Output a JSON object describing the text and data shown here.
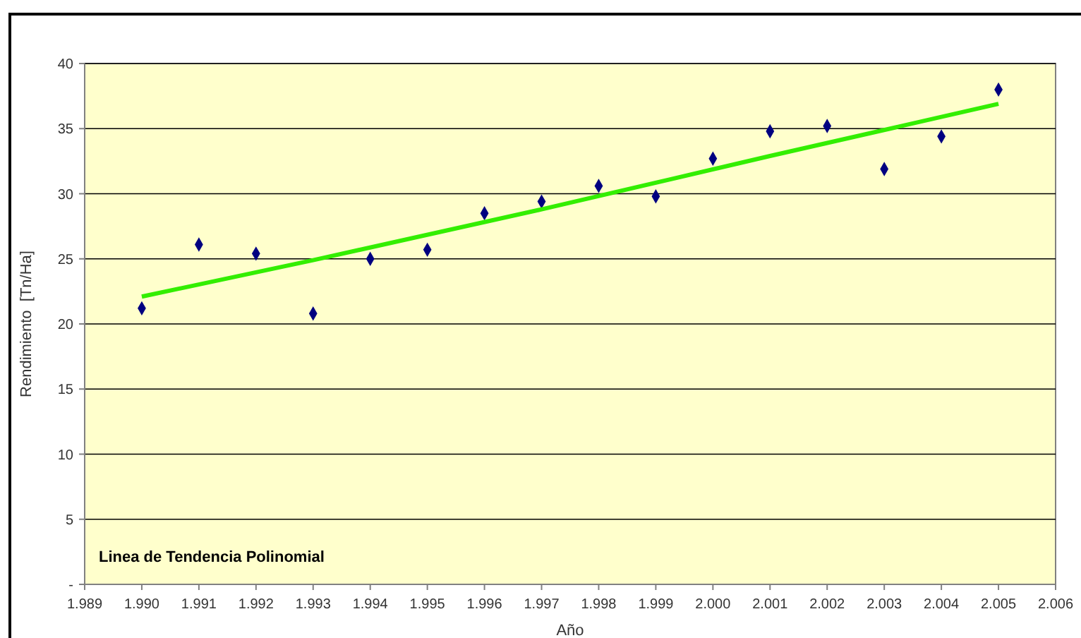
{
  "chart_data": {
    "type": "scatter",
    "xlabel": "Año",
    "ylabel": "Rendimiento  [Tn/Ha]",
    "x": [
      1990,
      1991,
      1992,
      1993,
      1994,
      1995,
      1996,
      1997,
      1998,
      1999,
      2000,
      2001,
      2002,
      2003,
      2004,
      2005
    ],
    "series": [
      {
        "color": "#000080",
        "marker": "diamond",
        "values": [
          21.2,
          26.1,
          25.4,
          20.8,
          25.0,
          25.7,
          28.5,
          29.4,
          30.6,
          29.8,
          32.7,
          34.8,
          35.2,
          31.9,
          34.4,
          38.0
        ]
      },
      {
        "type": "line",
        "color": "#33ee00",
        "x": [
          1990,
          1993,
          1997,
          2001,
          2005
        ],
        "values": [
          22.1,
          24.9,
          28.8,
          32.9,
          36.9
        ]
      }
    ],
    "xlim": [
      1989,
      2006
    ],
    "xticks": [
      {
        "value": 1989,
        "label": "1.989"
      },
      {
        "value": 1990,
        "label": "1.990"
      },
      {
        "value": 1991,
        "label": "1.991"
      },
      {
        "value": 1992,
        "label": "1.992"
      },
      {
        "value": 1993,
        "label": "1.993"
      },
      {
        "value": 1994,
        "label": "1.994"
      },
      {
        "value": 1995,
        "label": "1.995"
      },
      {
        "value": 1996,
        "label": "1.996"
      },
      {
        "value": 1997,
        "label": "1.997"
      },
      {
        "value": 1998,
        "label": "1.998"
      },
      {
        "value": 1999,
        "label": "1.999"
      },
      {
        "value": 2000,
        "label": "2.000"
      },
      {
        "value": 2001,
        "label": "2.001"
      },
      {
        "value": 2002,
        "label": "2.002"
      },
      {
        "value": 2003,
        "label": "2.003"
      },
      {
        "value": 2004,
        "label": "2.004"
      },
      {
        "value": 2005,
        "label": "2.005"
      },
      {
        "value": 2006,
        "label": "2.006"
      }
    ],
    "ylim": [
      0,
      40
    ],
    "yticks": [
      {
        "value": 0,
        "label": "-"
      },
      5,
      10,
      15,
      20,
      25,
      30,
      35,
      40
    ],
    "grid": "y",
    "annotations": [
      "Linea de Tendencia Polinomial"
    ]
  }
}
